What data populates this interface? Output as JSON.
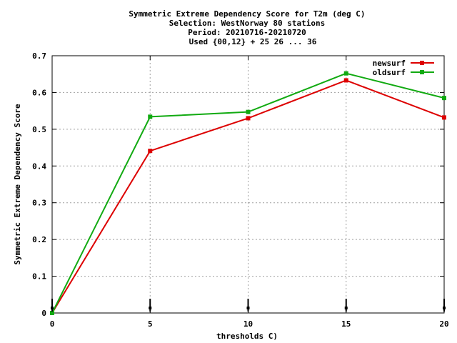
{
  "chart_data": {
    "type": "line",
    "title_lines": [
      "Symmetric Extreme Dependency Score  for T2m (deg C)",
      "Selection: WestNorway     80 stations",
      "Period: 20210716-20210720",
      "Used {00,12} + 25 26 ... 36"
    ],
    "xlabel": "thresholds C)",
    "ylabel": "Symmetric Extreme Dependency Score",
    "xlim": [
      0,
      20
    ],
    "ylim": [
      0,
      0.7
    ],
    "xticks": [
      "0",
      "5",
      "10",
      "15",
      "20"
    ],
    "yticks": [
      "0",
      "0.1",
      "0.2",
      "0.3",
      "0.4",
      "0.5",
      "0.6",
      "0.7"
    ],
    "grid": true,
    "legend_position": "top-right",
    "x": [
      0,
      5,
      10,
      15,
      20
    ],
    "series": [
      {
        "name": "newsurf",
        "color": "#dd0000",
        "values": [
          0.0,
          0.441,
          0.53,
          0.633,
          0.532
        ]
      },
      {
        "name": "oldsurf",
        "color": "#11aa11",
        "values": [
          0.0,
          0.534,
          0.547,
          0.652,
          0.585
        ]
      }
    ],
    "error_markers_x": [
      0,
      5,
      10,
      15,
      20
    ]
  }
}
